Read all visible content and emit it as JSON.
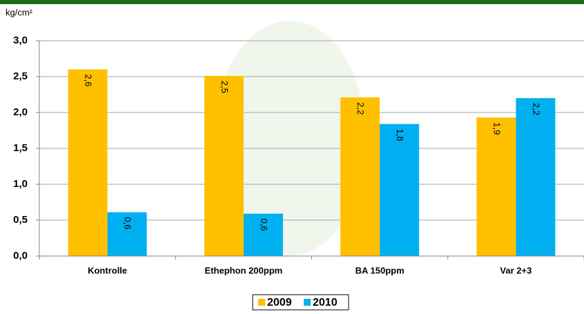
{
  "chart_data": {
    "type": "bar",
    "y_label": "kg/cm²",
    "categories": [
      "Kontrolle",
      "Ethephon 200ppm",
      "BA 150ppm",
      "Var 2+3"
    ],
    "series": [
      {
        "name": "2009",
        "color": "#ffc000",
        "values": [
          2.6,
          2.51,
          2.21,
          1.93
        ],
        "value_labels": [
          "2,6",
          "2,5",
          "2,2",
          "1,9"
        ]
      },
      {
        "name": "2010",
        "color": "#00b0f0",
        "values": [
          0.61,
          0.59,
          1.84,
          2.2
        ],
        "value_labels": [
          "0,6",
          "0,6",
          "1,8",
          "2,2"
        ]
      }
    ],
    "ylim": [
      0,
      3
    ],
    "yticks": [
      {
        "value": 0,
        "label": "0,0"
      },
      {
        "value": 0.5,
        "label": "0,5"
      },
      {
        "value": 1,
        "label": "1,0"
      },
      {
        "value": 1.5,
        "label": "1,5"
      },
      {
        "value": 2,
        "label": "2,0"
      },
      {
        "value": 2.5,
        "label": "2,5"
      },
      {
        "value": 3,
        "label": "3,0"
      }
    ],
    "grid": true,
    "legend": "bottom"
  }
}
